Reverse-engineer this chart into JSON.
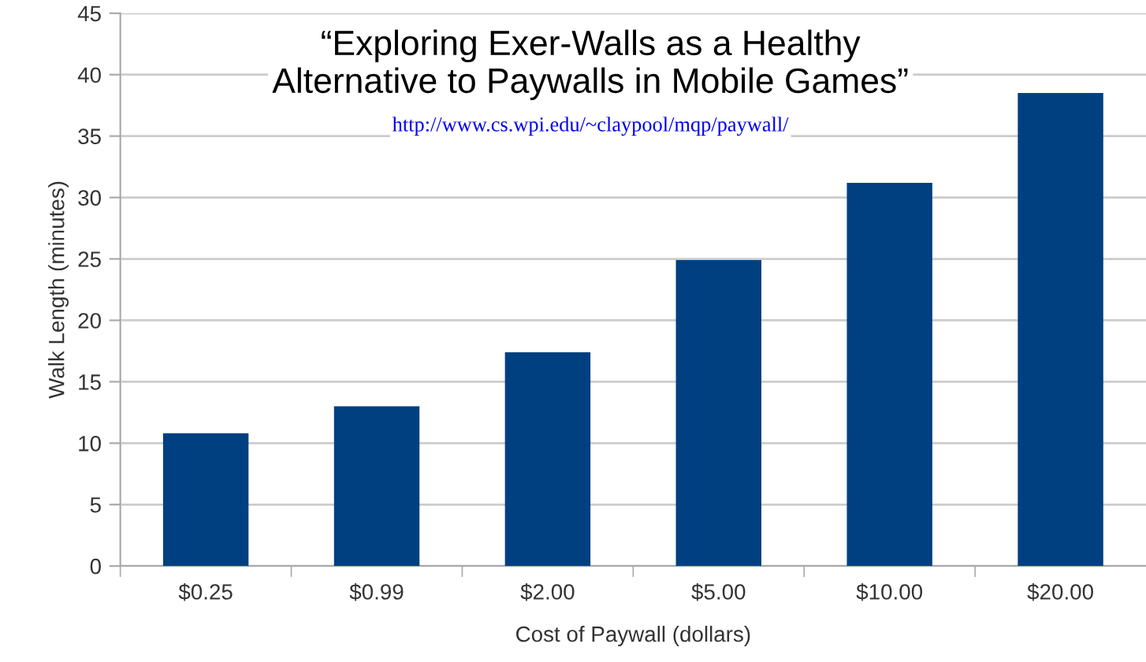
{
  "chart_data": {
    "type": "bar",
    "title": "“Exploring Exer-Walls as a Healthy\nAlternative to Paywalls in Mobile Games”",
    "annotations": [
      "http://www.cs.wpi.edu/~claypool/mqp/paywall/"
    ],
    "xlabel": "Cost of Paywall (dollars)",
    "ylabel": "Walk Length (minutes)",
    "categories": [
      "$0.25",
      "$0.99",
      "$2.00",
      "$5.00",
      "$10.00",
      "$20.00"
    ],
    "values": [
      10.8,
      13.0,
      17.4,
      24.9,
      31.2,
      38.5
    ],
    "color": "#004080",
    "ylim": [
      0,
      45
    ],
    "yticks": [
      0,
      5,
      10,
      15,
      20,
      25,
      30,
      35,
      40,
      45
    ],
    "grid": "y"
  }
}
